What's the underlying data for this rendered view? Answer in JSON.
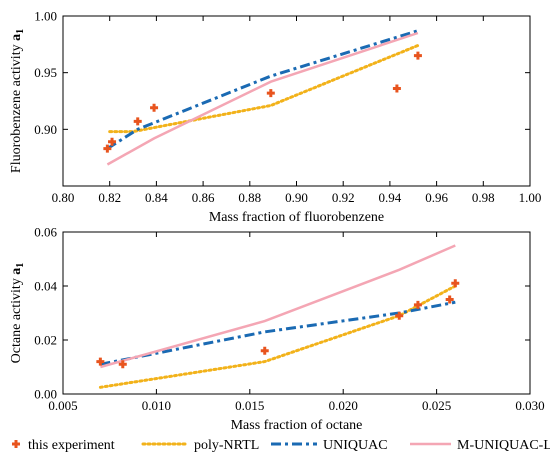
{
  "colors": {
    "experiment": "#e8541e",
    "poly_nrtl": "#f2b21a",
    "uniquac": "#1a6ab3",
    "m_uniquac_lby": "#f4a6b4"
  },
  "legend": [
    {
      "key": "experiment",
      "label": "this experiment",
      "style": "marker"
    },
    {
      "key": "poly_nrtl",
      "label": "poly-NRTL",
      "style": "dotted"
    },
    {
      "key": "uniquac",
      "label": "UNIQUAC",
      "style": "dashdot"
    },
    {
      "key": "m_uniquac_lby",
      "label": "M-UNIQUAC-LBY",
      "style": "solid"
    }
  ],
  "chart_data": [
    {
      "type": "line",
      "xlabel": "Mass fraction of fluorobenzene",
      "ylabel": "Fluorobenzene activity",
      "ylabel_sub": "a",
      "ylabel_sub_index": "1",
      "xlim": [
        0.8,
        1.0
      ],
      "ylim": [
        0.85,
        1.0
      ],
      "xticks": [
        "0.80",
        "0.82",
        "0.84",
        "0.86",
        "0.88",
        "0.90",
        "0.92",
        "0.94",
        "0.96",
        "0.98",
        "1.00"
      ],
      "yticks": [
        "0.90",
        "0.95",
        "1.00"
      ],
      "series": [
        {
          "name": "this experiment",
          "key": "experiment",
          "style": "marker",
          "x": [
            0.819,
            0.821,
            0.832,
            0.839,
            0.889,
            0.943,
            0.952
          ],
          "y": [
            0.883,
            0.889,
            0.907,
            0.919,
            0.932,
            0.936,
            0.965
          ]
        },
        {
          "name": "poly-NRTL",
          "key": "poly_nrtl",
          "style": "dotted",
          "x": [
            0.82,
            0.83,
            0.889,
            0.952
          ],
          "y": [
            0.898,
            0.898,
            0.921,
            0.974
          ]
        },
        {
          "name": "UNIQUAC",
          "key": "uniquac",
          "style": "dashdot",
          "x": [
            0.819,
            0.832,
            0.889,
            0.952
          ],
          "y": [
            0.883,
            0.9,
            0.947,
            0.987
          ]
        },
        {
          "name": "M-UNIQUAC-LBY",
          "key": "m_uniquac_lby",
          "style": "solid",
          "x": [
            0.819,
            0.839,
            0.889,
            0.952
          ],
          "y": [
            0.869,
            0.892,
            0.942,
            0.985
          ]
        }
      ]
    },
    {
      "type": "line",
      "xlabel": "Mass fraction of octane",
      "ylabel": "Octane activity",
      "ylabel_sub": "a",
      "ylabel_sub_index": "1",
      "xlim": [
        0.005,
        0.03
      ],
      "ylim": [
        0.0,
        0.06
      ],
      "xticks": [
        "0.005",
        "0.010",
        "0.015",
        "0.020",
        "0.025",
        "0.030"
      ],
      "yticks": [
        "0.00",
        "0.02",
        "0.04",
        "0.06"
      ],
      "series": [
        {
          "name": "this experiment",
          "key": "experiment",
          "style": "marker",
          "x": [
            0.007,
            0.0082,
            0.0158,
            0.023,
            0.024,
            0.0257,
            0.026
          ],
          "y": [
            0.012,
            0.011,
            0.016,
            0.029,
            0.033,
            0.035,
            0.041
          ]
        },
        {
          "name": "poly-NRTL",
          "key": "poly_nrtl",
          "style": "dotted",
          "x": [
            0.007,
            0.0158,
            0.023,
            0.026
          ],
          "y": [
            0.0025,
            0.012,
            0.029,
            0.04
          ]
        },
        {
          "name": "UNIQUAC",
          "key": "uniquac",
          "style": "dashdot",
          "x": [
            0.007,
            0.0158,
            0.023,
            0.026
          ],
          "y": [
            0.011,
            0.023,
            0.03,
            0.034
          ]
        },
        {
          "name": "M-UNIQUAC-LBY",
          "key": "m_uniquac_lby",
          "style": "solid",
          "x": [
            0.007,
            0.0158,
            0.023,
            0.026
          ],
          "y": [
            0.01,
            0.027,
            0.046,
            0.055
          ]
        }
      ]
    }
  ]
}
